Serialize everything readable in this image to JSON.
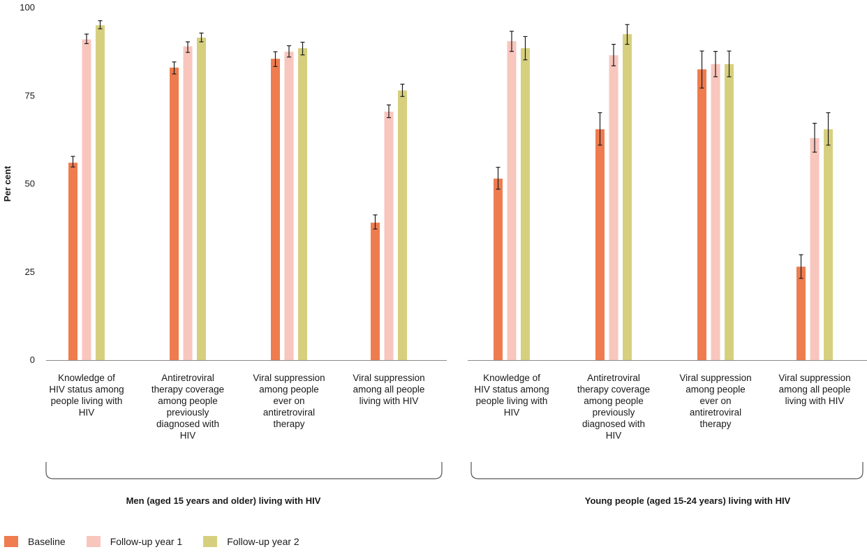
{
  "chart_data": {
    "type": "bar",
    "ylabel": "Per cent",
    "ylim": [
      0,
      100
    ],
    "yticks": [
      0,
      25,
      50,
      75,
      100
    ],
    "grid": false,
    "legend_position": "bottom-left",
    "series": [
      {
        "name": "Baseline",
        "color": "#ee7c4f"
      },
      {
        "name": "Follow-up year 1",
        "color": "#f8c6bd"
      },
      {
        "name": "Follow-up year 2",
        "color": "#d6d07e"
      }
    ],
    "panels": [
      {
        "group_label": "Men (aged 15 years and older) living with HIV",
        "categories": [
          [
            "Knowledge of",
            "HIV status among",
            "people living with",
            "HIV"
          ],
          [
            "Antiretroviral",
            "therapy coverage",
            "among people",
            "previously",
            "diagnosed with",
            "HIV"
          ],
          [
            "Viral suppression",
            "among people",
            "ever on",
            "antiretroviral",
            "therapy"
          ],
          [
            "Viral suppression",
            "among all people",
            "living with HIV"
          ]
        ],
        "values": [
          [
            [
              56,
              54.8,
              57.8
            ],
            [
              91,
              89.8,
              92.5
            ],
            [
              95,
              94,
              96.3
            ]
          ],
          [
            [
              83,
              81.2,
              84.6
            ],
            [
              89,
              87.3,
              90.3
            ],
            [
              91.5,
              90.3,
              92.8
            ]
          ],
          [
            [
              85.5,
              83.3,
              87.5
            ],
            [
              87.5,
              86,
              89.2
            ],
            [
              88.5,
              86.6,
              90.2
            ]
          ],
          [
            [
              39,
              37.2,
              41.2
            ],
            [
              70.5,
              68.8,
              72.4
            ],
            [
              76.5,
              74.8,
              78.3
            ]
          ]
        ]
      },
      {
        "group_label": "Young people (aged 15-24 years) living with HIV",
        "categories": [
          [
            "Knowledge of",
            "HIV status among",
            "people living with",
            "HIV"
          ],
          [
            "Antiretroviral",
            "therapy coverage",
            "among people",
            "previously",
            "diagnosed with",
            "HIV"
          ],
          [
            "Viral suppression",
            "among people",
            "ever on",
            "antiretroviral",
            "therapy"
          ],
          [
            "Viral suppression",
            "among all people",
            "living with HIV"
          ]
        ],
        "values": [
          [
            [
              51.5,
              48.5,
              54.7
            ],
            [
              90.5,
              87.6,
              93.3
            ],
            [
              88.5,
              85.2,
              91.8
            ]
          ],
          [
            [
              65.5,
              61,
              70.2
            ],
            [
              86.5,
              83.5,
              89.6
            ],
            [
              92.5,
              89.6,
              95.2
            ]
          ],
          [
            [
              82.5,
              77.2,
              87.7
            ],
            [
              84,
              80.4,
              87.6
            ],
            [
              84,
              80.4,
              87.7
            ]
          ],
          [
            [
              26.5,
              23.2,
              29.9
            ],
            [
              63,
              59,
              67.2
            ],
            [
              65.5,
              61,
              70.2
            ]
          ]
        ]
      }
    ]
  }
}
